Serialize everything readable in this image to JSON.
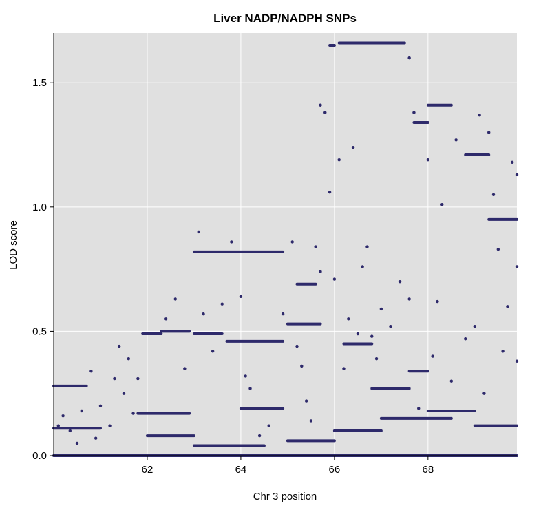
{
  "chart_data": {
    "type": "scatter",
    "title": "Liver NADP/NADPH SNPs",
    "xlabel": "Chr 3 position",
    "ylabel": "LOD score",
    "xlim": [
      60.0,
      69.9
    ],
    "ylim": [
      0.0,
      1.7
    ],
    "xticks": [
      62,
      64,
      66,
      68
    ],
    "yticks": [
      0.0,
      0.5,
      1.0,
      1.5
    ],
    "xtick_labels": [
      "62",
      "64",
      "66",
      "68"
    ],
    "ytick_labels": [
      "0.0",
      "0.5",
      "1.0",
      "1.5"
    ],
    "grid": true,
    "colors": {
      "points": "#2e2a6b",
      "panel": "#e0e0e0",
      "grid": "#ffffff"
    },
    "series": [
      {
        "segments": [
          [
            60.0,
            60.7,
            0.28
          ],
          [
            61.9,
            62.3,
            0.49
          ],
          [
            62.3,
            62.9,
            0.5
          ],
          [
            63.0,
            64.9,
            0.82
          ],
          [
            63.0,
            63.6,
            0.49
          ],
          [
            63.7,
            64.9,
            0.46
          ],
          [
            64.0,
            64.9,
            0.19
          ],
          [
            65.0,
            65.7,
            0.53
          ],
          [
            65.2,
            65.6,
            0.69
          ],
          [
            65.9,
            66.0,
            1.65
          ],
          [
            66.1,
            67.5,
            1.66
          ],
          [
            67.7,
            68.0,
            1.34
          ],
          [
            68.0,
            68.5,
            1.41
          ],
          [
            68.8,
            69.3,
            1.21
          ],
          [
            69.3,
            69.9,
            0.95
          ],
          [
            66.2,
            66.8,
            0.45
          ],
          [
            66.8,
            67.6,
            0.27
          ],
          [
            67.6,
            68.0,
            0.34
          ],
          [
            61.8,
            62.9,
            0.17
          ],
          [
            60.0,
            61.0,
            0.11
          ],
          [
            62.0,
            63.0,
            0.08
          ],
          [
            63.0,
            64.5,
            0.04
          ],
          [
            65.0,
            66.0,
            0.06
          ],
          [
            66.0,
            67.0,
            0.1
          ],
          [
            67.0,
            68.5,
            0.15
          ],
          [
            68.0,
            69.0,
            0.18
          ],
          [
            69.0,
            69.9,
            0.12
          ],
          [
            60.0,
            69.9,
            0.0
          ]
        ],
        "points": [
          [
            60.1,
            0.12
          ],
          [
            60.2,
            0.16
          ],
          [
            60.35,
            0.1
          ],
          [
            60.5,
            0.05
          ],
          [
            60.6,
            0.18
          ],
          [
            60.8,
            0.34
          ],
          [
            60.9,
            0.07
          ],
          [
            61.0,
            0.2
          ],
          [
            61.2,
            0.12
          ],
          [
            61.3,
            0.31
          ],
          [
            61.4,
            0.44
          ],
          [
            61.5,
            0.25
          ],
          [
            61.6,
            0.39
          ],
          [
            61.7,
            0.17
          ],
          [
            61.8,
            0.31
          ],
          [
            62.4,
            0.55
          ],
          [
            62.6,
            0.63
          ],
          [
            62.8,
            0.35
          ],
          [
            63.1,
            0.9
          ],
          [
            63.2,
            0.57
          ],
          [
            63.4,
            0.42
          ],
          [
            63.6,
            0.61
          ],
          [
            63.8,
            0.86
          ],
          [
            64.0,
            0.64
          ],
          [
            64.1,
            0.32
          ],
          [
            64.2,
            0.27
          ],
          [
            64.4,
            0.08
          ],
          [
            64.6,
            0.12
          ],
          [
            64.9,
            0.57
          ],
          [
            65.1,
            0.86
          ],
          [
            65.2,
            0.44
          ],
          [
            65.3,
            0.36
          ],
          [
            65.4,
            0.22
          ],
          [
            65.5,
            0.14
          ],
          [
            65.6,
            0.84
          ],
          [
            65.7,
            0.74
          ],
          [
            65.7,
            1.41
          ],
          [
            65.8,
            1.38
          ],
          [
            65.9,
            1.06
          ],
          [
            66.0,
            0.71
          ],
          [
            66.1,
            1.19
          ],
          [
            66.2,
            0.35
          ],
          [
            66.3,
            0.55
          ],
          [
            66.4,
            1.24
          ],
          [
            66.5,
            0.49
          ],
          [
            66.6,
            0.76
          ],
          [
            66.7,
            0.84
          ],
          [
            66.8,
            0.48
          ],
          [
            66.9,
            0.39
          ],
          [
            67.0,
            0.59
          ],
          [
            67.2,
            0.52
          ],
          [
            67.4,
            0.7
          ],
          [
            67.6,
            1.6
          ],
          [
            67.6,
            0.63
          ],
          [
            67.7,
            1.38
          ],
          [
            67.8,
            0.19
          ],
          [
            68.0,
            1.19
          ],
          [
            68.1,
            0.4
          ],
          [
            68.2,
            0.62
          ],
          [
            68.3,
            1.01
          ],
          [
            68.5,
            0.3
          ],
          [
            68.6,
            1.27
          ],
          [
            68.8,
            0.47
          ],
          [
            69.0,
            0.52
          ],
          [
            69.1,
            1.37
          ],
          [
            69.2,
            0.25
          ],
          [
            69.3,
            1.3
          ],
          [
            69.4,
            1.05
          ],
          [
            69.5,
            0.83
          ],
          [
            69.6,
            0.42
          ],
          [
            69.7,
            0.6
          ],
          [
            69.8,
            1.18
          ],
          [
            69.9,
            1.13
          ],
          [
            69.9,
            0.76
          ],
          [
            69.9,
            0.38
          ]
        ]
      }
    ]
  }
}
